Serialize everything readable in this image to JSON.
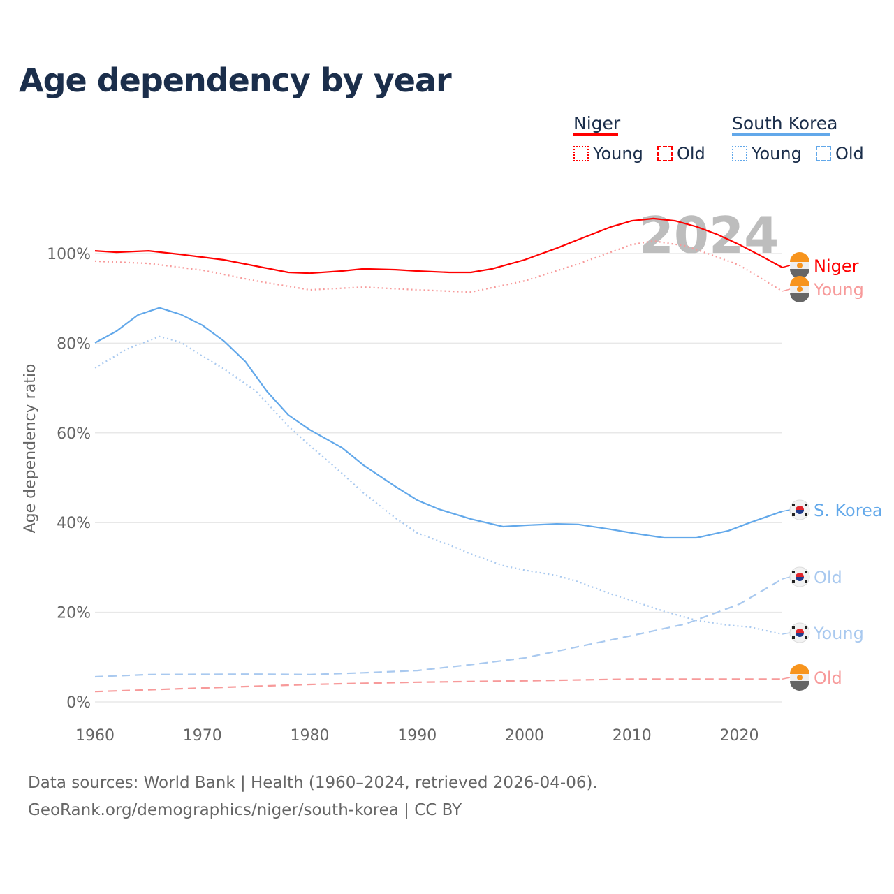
{
  "title": "Age dependency by year",
  "legend": {
    "groups": [
      {
        "name": "Niger",
        "color": "#ff0000",
        "items": [
          "Young",
          "Old"
        ]
      },
      {
        "name": "South Korea",
        "color": "#62a8ea",
        "items": [
          "Young",
          "Old"
        ]
      }
    ]
  },
  "source_line1": "Data sources: World Bank | Health (1960–2024, retrieved 2026-04-06).",
  "source_line2": "GeoRank.org/demographics/niger/south-korea | CC BY",
  "chart_data": {
    "type": "line",
    "title": "Age dependency by year",
    "xlabel": "",
    "ylabel": "Age dependency ratio",
    "xlim": [
      1960,
      2024
    ],
    "ylim": [
      0,
      110
    ],
    "yticks": [
      0,
      20,
      40,
      60,
      80,
      100
    ],
    "ytick_labels": [
      "0%",
      "20%",
      "40%",
      "60%",
      "80%",
      "100%"
    ],
    "xticks": [
      1960,
      1970,
      1980,
      1990,
      2000,
      2010,
      2020
    ],
    "xtick_labels": [
      "1960",
      "1970",
      "1980",
      "1990",
      "2000",
      "2010",
      "2020"
    ],
    "year_watermark": "2024",
    "grid": true,
    "series": [
      {
        "name": "Niger",
        "end_label": "Niger",
        "flag": "niger",
        "color": "#ff0000",
        "dash": "solid",
        "x": [
          1960,
          1962,
          1965,
          1968,
          1970,
          1972,
          1975,
          1978,
          1980,
          1983,
          1985,
          1988,
          1990,
          1993,
          1995,
          1997,
          2000,
          2003,
          2005,
          2008,
          2010,
          2012,
          2014,
          2016,
          2018,
          2020,
          2022,
          2024
        ],
        "y": [
          100.6,
          100.3,
          100.6,
          99.8,
          99.2,
          98.6,
          97.2,
          95.8,
          95.6,
          96.1,
          96.6,
          96.4,
          96.1,
          95.8,
          95.8,
          96.6,
          98.6,
          101.2,
          103.1,
          105.9,
          107.3,
          107.8,
          107.3,
          106,
          104.2,
          102,
          99.5,
          96.9
        ]
      },
      {
        "name": "Niger Young",
        "end_label": "Young",
        "flag": "niger",
        "color": "#f79a9a",
        "dash": "dotted",
        "x": [
          1960,
          1965,
          1970,
          1975,
          1980,
          1985,
          1990,
          1995,
          2000,
          2005,
          2010,
          2012,
          2015,
          2018,
          2020,
          2022,
          2024
        ],
        "y": [
          98.3,
          97.8,
          96.3,
          93.9,
          91.9,
          92.5,
          91.9,
          91.4,
          93.9,
          97.7,
          102,
          102.8,
          101.7,
          99.2,
          97.4,
          94.5,
          91.6
        ]
      },
      {
        "name": "South Korea",
        "end_label": "S. Korea",
        "flag": "korea",
        "color": "#62a8ea",
        "dash": "solid",
        "x": [
          1960,
          1962,
          1964,
          1966,
          1968,
          1970,
          1972,
          1974,
          1976,
          1978,
          1980,
          1983,
          1985,
          1988,
          1990,
          1992,
          1995,
          1998,
          2000,
          2003,
          2005,
          2008,
          2010,
          2013,
          2016,
          2019,
          2021,
          2024
        ],
        "y": [
          80.1,
          82.7,
          86.3,
          87.9,
          86.4,
          84,
          80.5,
          75.9,
          69.3,
          64,
          60.7,
          56.7,
          52.8,
          48,
          45,
          43,
          40.8,
          39.1,
          39.4,
          39.7,
          39.6,
          38.5,
          37.7,
          36.6,
          36.6,
          38.2,
          40,
          42.5
        ]
      },
      {
        "name": "South Korea Old",
        "end_label": "Old",
        "flag": "korea",
        "color": "#a9c9ef",
        "dash": "dashed",
        "x": [
          1960,
          1965,
          1975,
          1980,
          1985,
          1990,
          1995,
          2000,
          2005,
          2010,
          2015,
          2020,
          2024
        ],
        "y": [
          5.6,
          6.1,
          6.2,
          6.1,
          6.5,
          7,
          8.3,
          9.8,
          12.3,
          14.8,
          17.4,
          21.8,
          27.4
        ]
      },
      {
        "name": "South Korea Young",
        "end_label": "Young",
        "flag": "korea",
        "color": "#a9c9ef",
        "dash": "dotted",
        "x": [
          1960,
          1963,
          1966,
          1968,
          1970,
          1972,
          1975,
          1978,
          1980,
          1983,
          1985,
          1988,
          1990,
          1993,
          1995,
          1998,
          2000,
          2003,
          2005,
          2008,
          2010,
          2013,
          2016,
          2019,
          2021,
          2024
        ],
        "y": [
          74.5,
          78.7,
          81.5,
          80.2,
          77.1,
          74.3,
          69.3,
          61.5,
          57.2,
          51,
          46.6,
          41,
          37.7,
          35,
          33,
          30.4,
          29.4,
          28.2,
          26.8,
          24.1,
          22.6,
          20.2,
          18.2,
          17.1,
          16.7,
          15.1
        ]
      },
      {
        "name": "Niger Old",
        "end_label": "Old",
        "flag": "niger",
        "color": "#f79a9a",
        "dash": "dashed",
        "x": [
          1960,
          1970,
          1980,
          1990,
          2000,
          2010,
          2024
        ],
        "y": [
          2.3,
          3.1,
          3.9,
          4.4,
          4.7,
          5.1,
          5.1
        ]
      }
    ]
  }
}
